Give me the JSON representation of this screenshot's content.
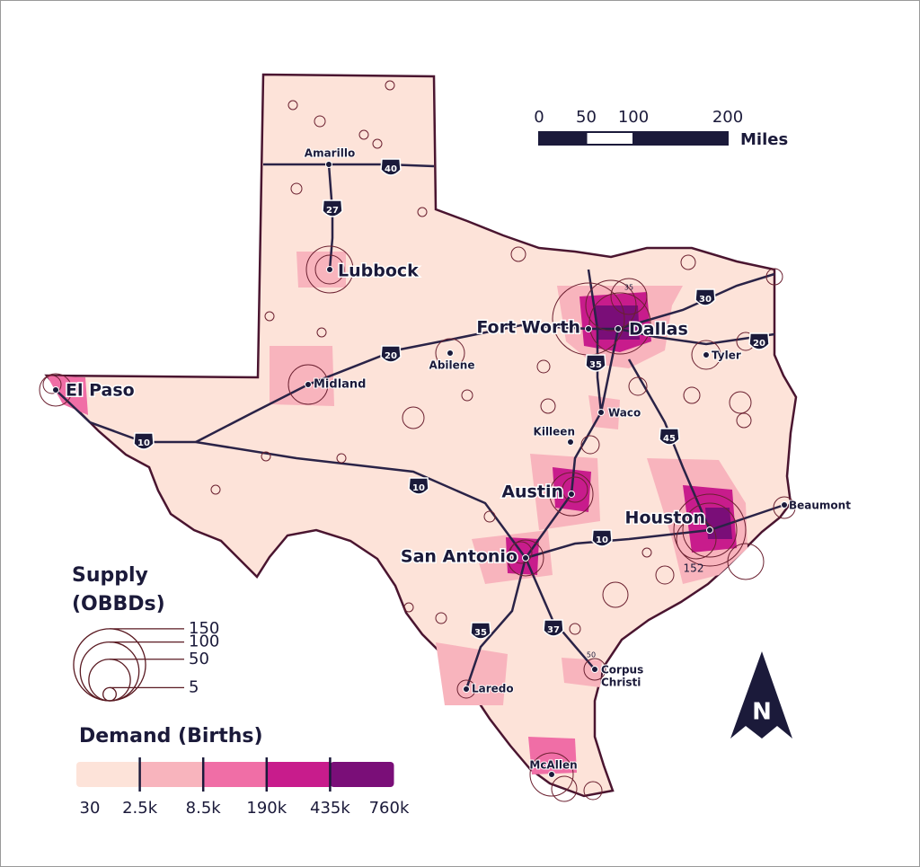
{
  "map": {
    "scale_bar": {
      "ticks": [
        0,
        50,
        100,
        200
      ],
      "unit": "Miles"
    },
    "cities": [
      {
        "label": [
          "Amarillo"
        ]
      },
      {
        "label": [
          "Lubbock"
        ]
      },
      {
        "label": [
          "Fort Worth"
        ]
      },
      {
        "label": [
          "Dallas"
        ]
      },
      {
        "label": [
          "Tyler"
        ]
      },
      {
        "label": [
          "Abilene"
        ]
      },
      {
        "label": [
          "Midland"
        ]
      },
      {
        "label": [
          "El Paso"
        ]
      },
      {
        "label": [
          "Waco"
        ]
      },
      {
        "label": [
          "Killeen"
        ]
      },
      {
        "label": [
          "Austin"
        ]
      },
      {
        "label": [
          "Houston"
        ]
      },
      {
        "label": [
          "Beaumont"
        ]
      },
      {
        "label": [
          "San Antonio"
        ]
      },
      {
        "label": [
          "Corpus",
          "Christi"
        ]
      },
      {
        "label": [
          "Laredo"
        ]
      },
      {
        "label": [
          "McAllen"
        ]
      }
    ],
    "interstates": [
      "40",
      "27",
      "30",
      "20",
      "20",
      "35",
      "45",
      "10",
      "10",
      "10",
      "35",
      "37"
    ],
    "annotations": [
      "152",
      "50",
      "35"
    ],
    "north_label": "N",
    "supply_legend": {
      "title_lines": [
        "Supply",
        "(OBBDs)"
      ],
      "values": [
        150,
        100,
        50,
        5
      ],
      "color": "#5a1a22"
    },
    "demand_legend": {
      "title": "Demand (Births)",
      "breaks": [
        30,
        {
          "value": 2500,
          "label": "2.5k"
        },
        {
          "value": 8500,
          "label": "8.5k"
        },
        {
          "value": 190000,
          "label": "190k"
        },
        {
          "value": 435000,
          "label": "435k"
        },
        {
          "value": 760000,
          "label": "760k"
        }
      ],
      "colors": [
        "#fde3d9",
        "#f8b4bd",
        "#f06ea6",
        "#c81c8c",
        "#7a0e78"
      ]
    }
  }
}
